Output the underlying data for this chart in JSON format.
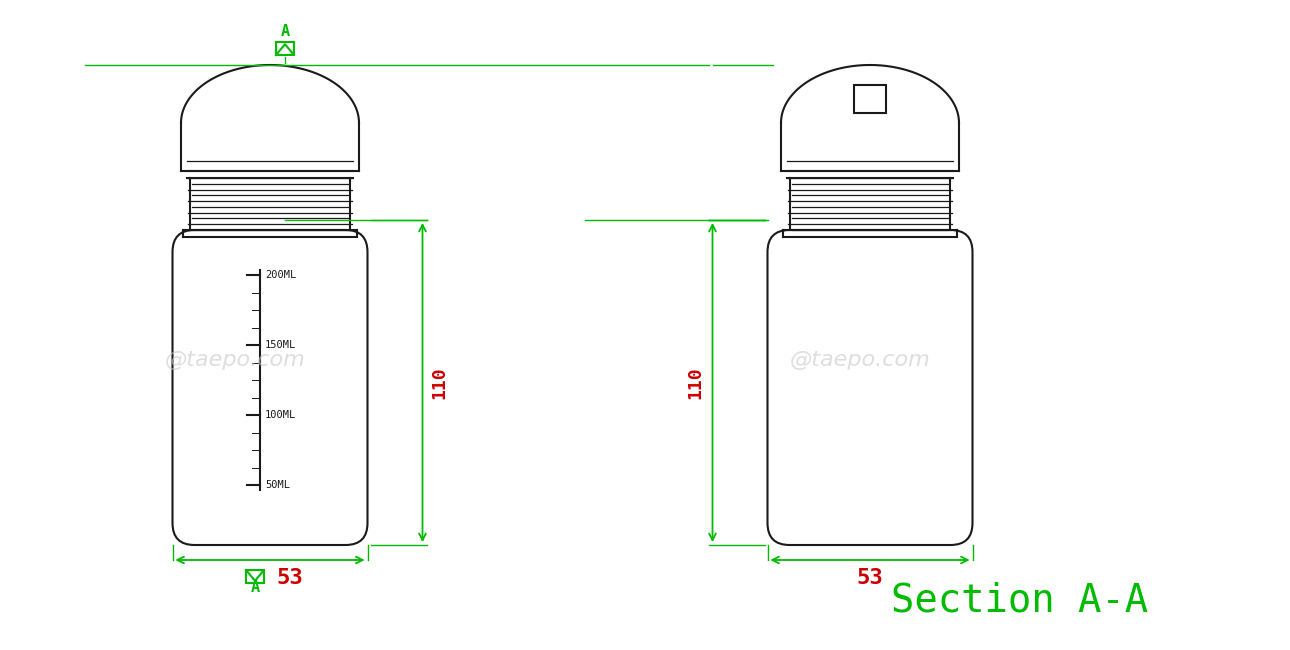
{
  "bg_color": "#ffffff",
  "line_color": "#1a1a1a",
  "green_color": "#00bb00",
  "red_color": "#cc0000",
  "watermark": "@taepo.com",
  "watermark_color": "#c8c8c8",
  "title_right": "Section A-A",
  "dim_110_text": "110",
  "dim_53_text": "53",
  "ml_labels": [
    "200ML",
    "150ML",
    "100ML",
    "50ML"
  ],
  "fig_width": 12.9,
  "fig_height": 6.5
}
